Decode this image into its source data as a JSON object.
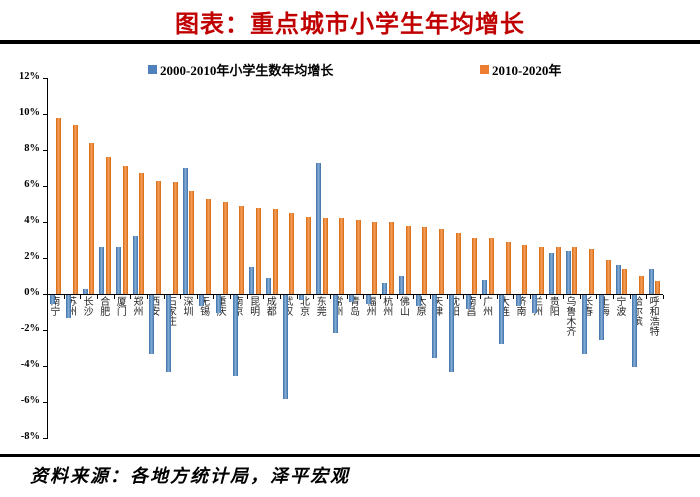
{
  "title": "图表：重点城市小学生年均增长",
  "legend": {
    "series1_label": "2000-2010年小学生数年均增长",
    "series2_label": "2010-2020年"
  },
  "source_text": "资料来源：各地方统计局，泽平宏观",
  "colors": {
    "title": "#c00000",
    "series1": "#4f81bd",
    "series2": "#ed7d31"
  },
  "y_axis": {
    "tick_labels": [
      "12%",
      "10%",
      "8%",
      "6%",
      "4%",
      "2%",
      "0%",
      "-2%",
      "-4%",
      "-6%",
      "-8%"
    ],
    "max": 12,
    "min": -8,
    "step": 2
  },
  "chart_data": {
    "type": "bar",
    "title": "图表：重点城市小学生年均增长",
    "xlabel": "",
    "ylabel": "",
    "ylim": [
      -8,
      12
    ],
    "y_tick_step": 2,
    "y_unit": "%",
    "grid": false,
    "legend_position": "top",
    "categories": [
      "南宁",
      "苏州",
      "长沙",
      "合肥",
      "厦门",
      "郑州",
      "西安",
      "石家庄",
      "深圳",
      "无锡",
      "重庆",
      "南京",
      "昆明",
      "成都",
      "武汉",
      "北京",
      "东莞",
      "常州",
      "青岛",
      "福州",
      "杭州",
      "佛山",
      "太原",
      "天津",
      "沈阳",
      "南昌",
      "广州",
      "大连",
      "济南",
      "兰州",
      "贵阳",
      "乌鲁木齐",
      "长春",
      "上海",
      "宁波",
      "哈尔滨",
      "呼和浩特"
    ],
    "series": [
      {
        "name": "2000-2010年小学生数年均增长",
        "color": "#4f81bd",
        "values": [
          -0.5,
          -1.3,
          0.3,
          2.6,
          2.6,
          3.2,
          -3.3,
          -4.3,
          7.0,
          -0.6,
          -1.0,
          -4.5,
          1.5,
          0.9,
          -5.8,
          -0.3,
          7.3,
          -2.1,
          -0.4,
          -0.5,
          0.6,
          1.0,
          -0.6,
          -3.5,
          -4.3,
          -0.8,
          0.8,
          -2.7,
          -0.6,
          -1.0,
          2.3,
          2.4,
          -3.3,
          -2.5,
          1.6,
          -4.0,
          1.4
        ]
      },
      {
        "name": "2010-2020年",
        "color": "#ed7d31",
        "values": [
          9.8,
          9.4,
          8.4,
          7.6,
          7.1,
          6.7,
          6.3,
          6.2,
          5.7,
          5.3,
          5.1,
          4.9,
          4.8,
          4.7,
          4.5,
          4.3,
          4.2,
          4.2,
          4.1,
          4.0,
          4.0,
          3.8,
          3.7,
          3.6,
          3.4,
          3.1,
          3.1,
          2.9,
          2.7,
          2.6,
          2.6,
          2.6,
          2.5,
          1.9,
          1.4,
          1.0,
          0.7
        ]
      }
    ]
  }
}
